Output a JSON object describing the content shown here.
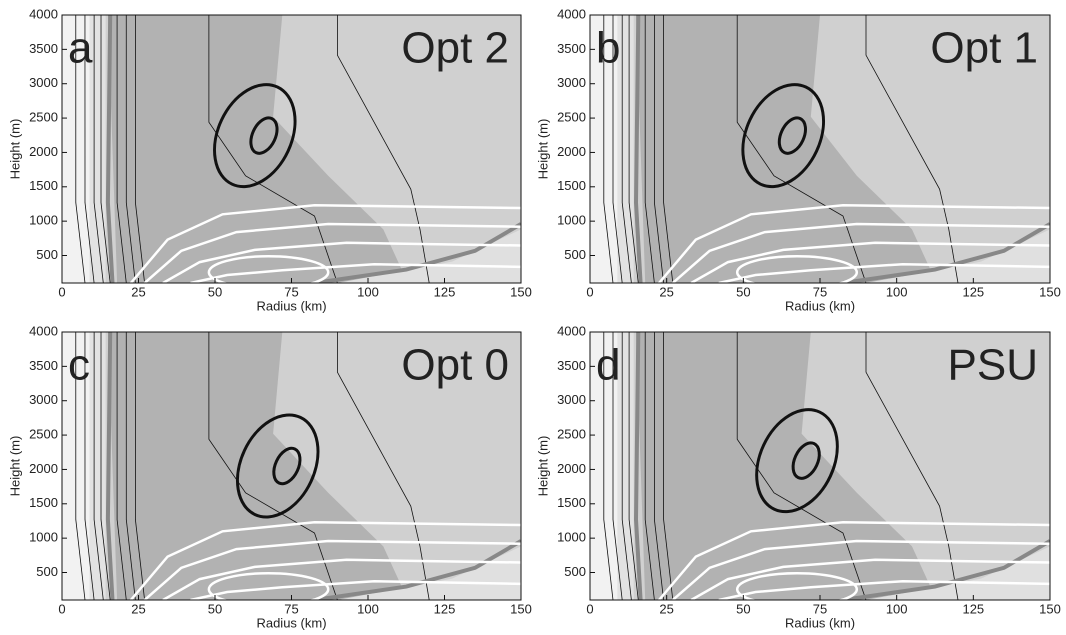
{
  "chart_data": [
    {
      "type": "contour",
      "panel": "a",
      "title": "Opt 2",
      "xlabel": "Radius (km)",
      "ylabel": "Height (m)",
      "xlim": [
        0,
        150
      ],
      "ylim": [
        100,
        4000
      ],
      "xticks": [
        0,
        25,
        50,
        75,
        100,
        125,
        150
      ],
      "yticks": [
        500,
        1000,
        1500,
        2000,
        2500,
        3000,
        3500,
        4000
      ]
    },
    {
      "type": "contour",
      "panel": "b",
      "title": "Opt 1",
      "xlabel": "Radius (km)",
      "ylabel": "Height (m)",
      "xlim": [
        0,
        150
      ],
      "ylim": [
        100,
        4000
      ],
      "xticks": [
        0,
        25,
        50,
        75,
        100,
        125,
        150
      ],
      "yticks": [
        500,
        1000,
        1500,
        2000,
        2500,
        3000,
        3500,
        4000
      ]
    },
    {
      "type": "contour",
      "panel": "c",
      "title": "Opt 0",
      "xlabel": "Radius (km)",
      "ylabel": "Height (m)",
      "xlim": [
        0,
        150
      ],
      "ylim": [
        100,
        4000
      ],
      "xticks": [
        0,
        25,
        50,
        75,
        100,
        125,
        150
      ],
      "yticks": [
        500,
        1000,
        1500,
        2000,
        2500,
        3000,
        3500,
        4000
      ]
    },
    {
      "type": "contour",
      "panel": "d",
      "title": "PSU",
      "xlabel": "Radius (km)",
      "ylabel": "Height (m)",
      "xlim": [
        0,
        150
      ],
      "ylim": [
        100,
        4000
      ],
      "xticks": [
        0,
        25,
        50,
        75,
        100,
        125,
        150
      ],
      "yticks": [
        500,
        1000,
        1500,
        2000,
        2500,
        3000,
        3500,
        4000
      ]
    }
  ]
}
